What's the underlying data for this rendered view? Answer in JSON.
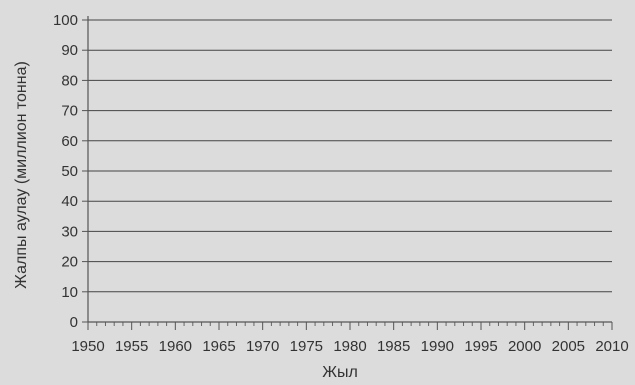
{
  "chart_data": {
    "type": "line",
    "title": "",
    "xlabel": "Жыл",
    "ylabel": "Жалпы аулау (миллион тонна)",
    "x_ticks": [
      "1950",
      "1955",
      "1960",
      "1965",
      "1970",
      "1975",
      "1980",
      "1985",
      "1990",
      "1995",
      "2000",
      "2005",
      "2010"
    ],
    "y_ticks": [
      "0",
      "10",
      "20",
      "30",
      "40",
      "50",
      "60",
      "70",
      "80",
      "90",
      "100"
    ],
    "xlim": [
      1950,
      2010
    ],
    "ylim": [
      0,
      100
    ],
    "grid": "horizontal",
    "series": []
  }
}
